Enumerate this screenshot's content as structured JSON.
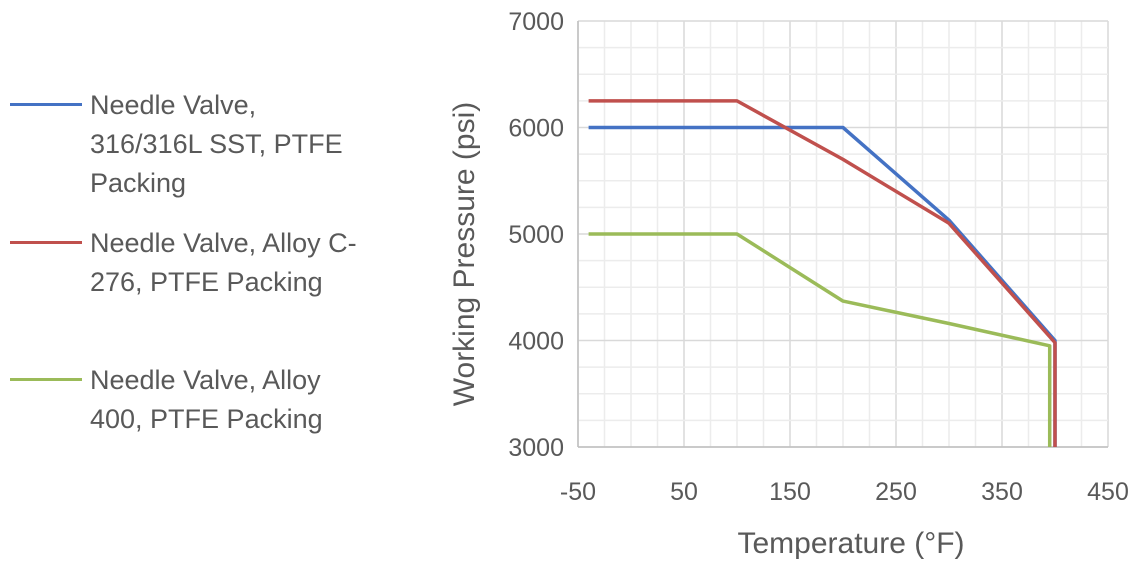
{
  "chart_data": {
    "type": "line",
    "xlabel": "Temperature (°F)",
    "ylabel": "Working Pressure  (psi)",
    "xlim": [
      -50,
      450
    ],
    "ylim": [
      3000,
      7000
    ],
    "x_ticks": [
      -50,
      50,
      150,
      250,
      350,
      450
    ],
    "y_ticks": [
      3000,
      4000,
      5000,
      6000,
      7000
    ],
    "x_tick_labels": [
      "-50",
      "50",
      "150",
      "250",
      "350",
      "450"
    ],
    "y_tick_labels": [
      "3000",
      "4000",
      "5000",
      "6000",
      "7000"
    ],
    "grid": true,
    "legend_position": "left",
    "series": [
      {
        "name": "Needle Valve, 316/316L SST, PTFE Packing",
        "legend_lines": [
          "Needle Valve,",
          "316/316L SST, PTFE",
          "Packing"
        ],
        "color": "#4472C4",
        "points": [
          [
            -40,
            6000
          ],
          [
            100,
            6000
          ],
          [
            200,
            6000
          ],
          [
            300,
            5130
          ],
          [
            400,
            4000
          ],
          [
            400,
            3000
          ]
        ]
      },
      {
        "name": "Needle Valve, Alloy C-276, PTFE Packing",
        "legend_lines": [
          "Needle Valve, Alloy C-",
          "276, PTFE Packing"
        ],
        "color": "#C0504D",
        "points": [
          [
            -40,
            6250
          ],
          [
            100,
            6250
          ],
          [
            200,
            5700
          ],
          [
            300,
            5100
          ],
          [
            400,
            3980
          ],
          [
            400,
            3000
          ]
        ]
      },
      {
        "name": "Needle Valve, Alloy 400, PTFE Packing",
        "legend_lines": [
          "Needle Valve, Alloy",
          "400, PTFE Packing"
        ],
        "color": "#9BBB59",
        "points": [
          [
            -40,
            5000
          ],
          [
            100,
            5000
          ],
          [
            200,
            4370
          ],
          [
            300,
            4160
          ],
          [
            395,
            3950
          ],
          [
            395,
            3000
          ]
        ]
      }
    ]
  }
}
